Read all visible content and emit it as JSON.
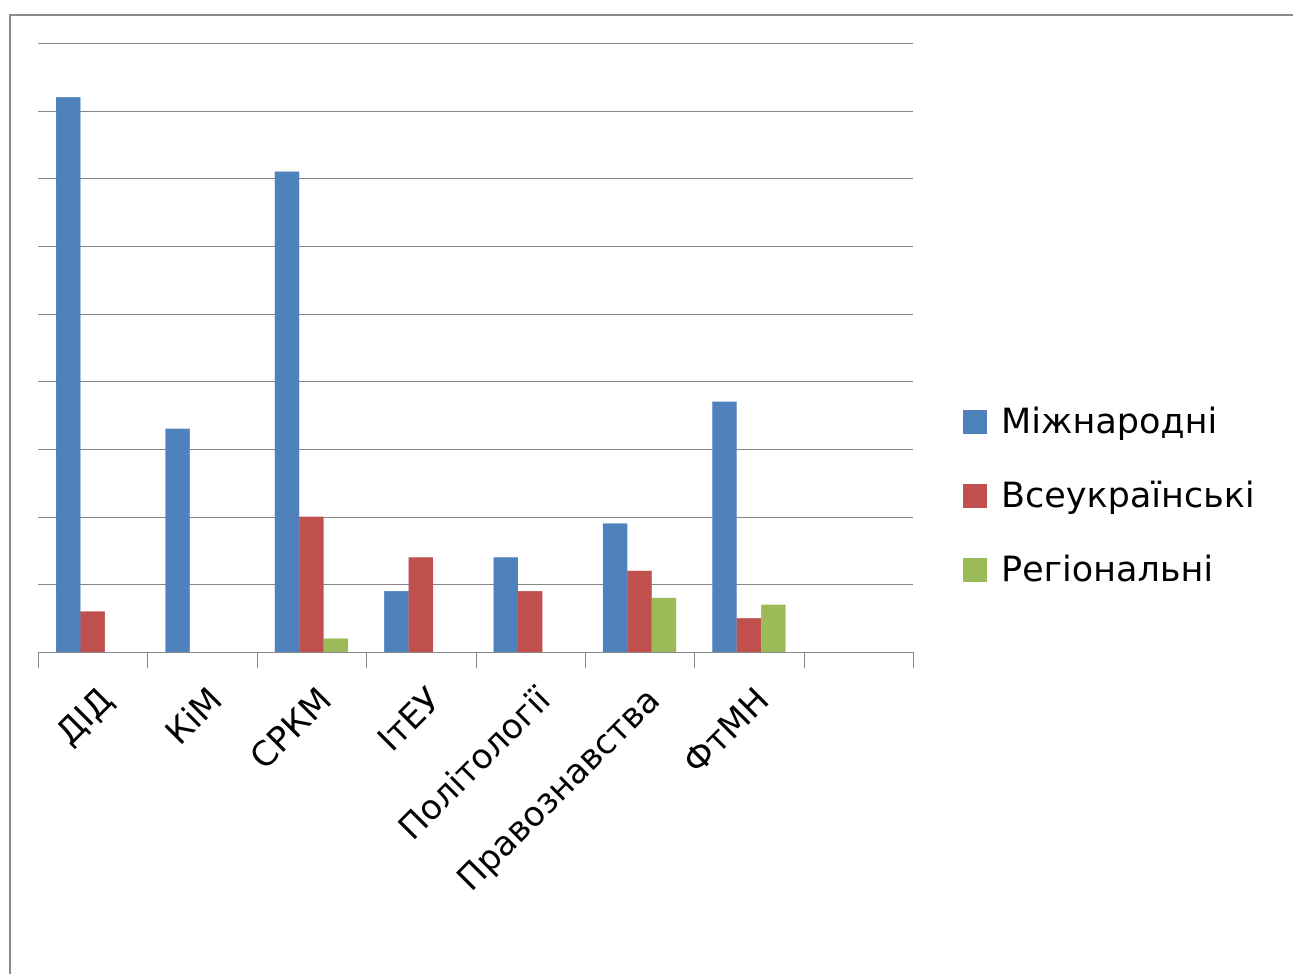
{
  "chart_data": {
    "type": "bar",
    "title": "",
    "xlabel": "",
    "ylabel": "",
    "categories": [
      "ДІД",
      "КіМ",
      "СРКМ",
      "ІтЕУ",
      "Політології",
      "Правознавства",
      "ФтМН",
      ""
    ],
    "series": [
      {
        "name": "Міжнародні",
        "color": "#4F81BD",
        "values": [
          41,
          16.5,
          35.5,
          4.5,
          7,
          9.5,
          18.5,
          0
        ]
      },
      {
        "name": "Всеукраїнські",
        "color": "#C0504D",
        "values": [
          3,
          0,
          10,
          7,
          4.5,
          6,
          2.5,
          0
        ]
      },
      {
        "name": "Регіональні",
        "color": "#9BBB59",
        "values": [
          0,
          0,
          1,
          0,
          0,
          4,
          3.5,
          0
        ]
      }
    ],
    "ylim": [
      0,
      45
    ],
    "y_tick_step": 5,
    "grid": true,
    "y_tick_labels_visible": false,
    "legend_position": "right",
    "gridline_color": "#868686",
    "axis_color": "#868686"
  }
}
